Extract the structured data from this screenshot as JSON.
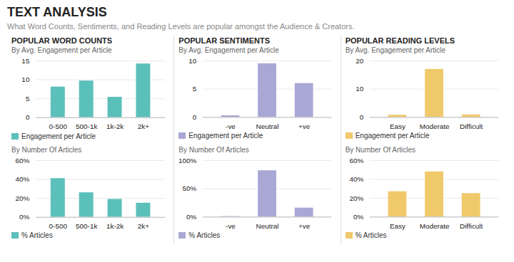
{
  "title": "TEXT ANALYSIS",
  "subtitle": "What Word Counts, Sentiments, and Reading Levels are popular amongst the Audience & Creators.",
  "chart_data": [
    {
      "type": "bar",
      "title": "POPULAR WORD COUNTS",
      "subtitle": "By Avg. Engagement per Article",
      "categories": [
        "0-500",
        "500-1k",
        "1k-2k",
        "2k+"
      ],
      "series": [
        {
          "name": "Engagement per Article",
          "color": "#5bbfba",
          "values": [
            8.1,
            9.7,
            5.4,
            14.2
          ]
        }
      ],
      "ylim": [
        0,
        15
      ],
      "yticks": [
        0,
        5,
        10,
        15
      ],
      "grid": true,
      "legend": "bottom"
    },
    {
      "type": "bar",
      "subtitle": "By Number Of Articles",
      "categories": [
        "0-500",
        "500-1k",
        "1k-2k",
        "2k+"
      ],
      "series": [
        {
          "name": "% Articles",
          "color": "#5bbfba",
          "values": [
            41,
            26,
            19,
            15
          ]
        }
      ],
      "ylim": [
        0,
        60
      ],
      "yticks": [
        {
          "value": 0,
          "label": "0%"
        },
        {
          "value": 20,
          "label": "20%"
        },
        {
          "value": 40,
          "label": "40%"
        },
        {
          "value": 60,
          "label": "60%"
        }
      ],
      "grid": true,
      "legend": "bottom"
    },
    {
      "type": "bar",
      "title": "POPULAR SENTIMENTS",
      "subtitle": "By Avg. Engagement per Article",
      "categories": [
        "-ve",
        "Neutral",
        "+ve"
      ],
      "series": [
        {
          "name": "Engagement per Article",
          "color": "#a9a8d4",
          "values": [
            0.3,
            9.5,
            6.0
          ]
        }
      ],
      "ylim": [
        0,
        10
      ],
      "yticks": [
        0,
        5,
        10
      ],
      "grid": true,
      "legend": "bottom"
    },
    {
      "type": "bar",
      "subtitle": "By Number Of Articles",
      "categories": [
        "-ve",
        "Neutral",
        "+ve"
      ],
      "series": [
        {
          "name": "% Articles",
          "color": "#a9a8d4",
          "values": [
            1,
            82,
            16
          ]
        }
      ],
      "ylim": [
        0,
        100
      ],
      "yticks": [
        {
          "value": 0,
          "label": "0%"
        },
        {
          "value": 50,
          "label": "50%"
        },
        {
          "value": 100,
          "label": "100%"
        }
      ],
      "grid": true,
      "legend": "bottom"
    },
    {
      "type": "bar",
      "title": "POPULAR READING LEVELS",
      "subtitle": "By Avg. Engagement per Article",
      "categories": [
        "Easy",
        "Moderate",
        "Difficult"
      ],
      "series": [
        {
          "name": "Engagement per Article",
          "color": "#f0c96b",
          "values": [
            0.8,
            17.0,
            0.9
          ]
        }
      ],
      "ylim": [
        0,
        20
      ],
      "yticks": [
        0,
        10,
        20
      ],
      "grid": true,
      "legend": "bottom"
    },
    {
      "type": "bar",
      "subtitle": "By Number Of Articles",
      "categories": [
        "Easy",
        "Moderate",
        "Difficult"
      ],
      "series": [
        {
          "name": "% Articles",
          "color": "#f0c96b",
          "values": [
            27,
            48,
            25
          ]
        }
      ],
      "ylim": [
        0,
        60
      ],
      "yticks": [
        {
          "value": 0,
          "label": "0%"
        },
        {
          "value": 20,
          "label": "20%"
        },
        {
          "value": 40,
          "label": "40%"
        },
        {
          "value": 60,
          "label": "60%"
        }
      ],
      "grid": true,
      "legend": "bottom"
    }
  ]
}
